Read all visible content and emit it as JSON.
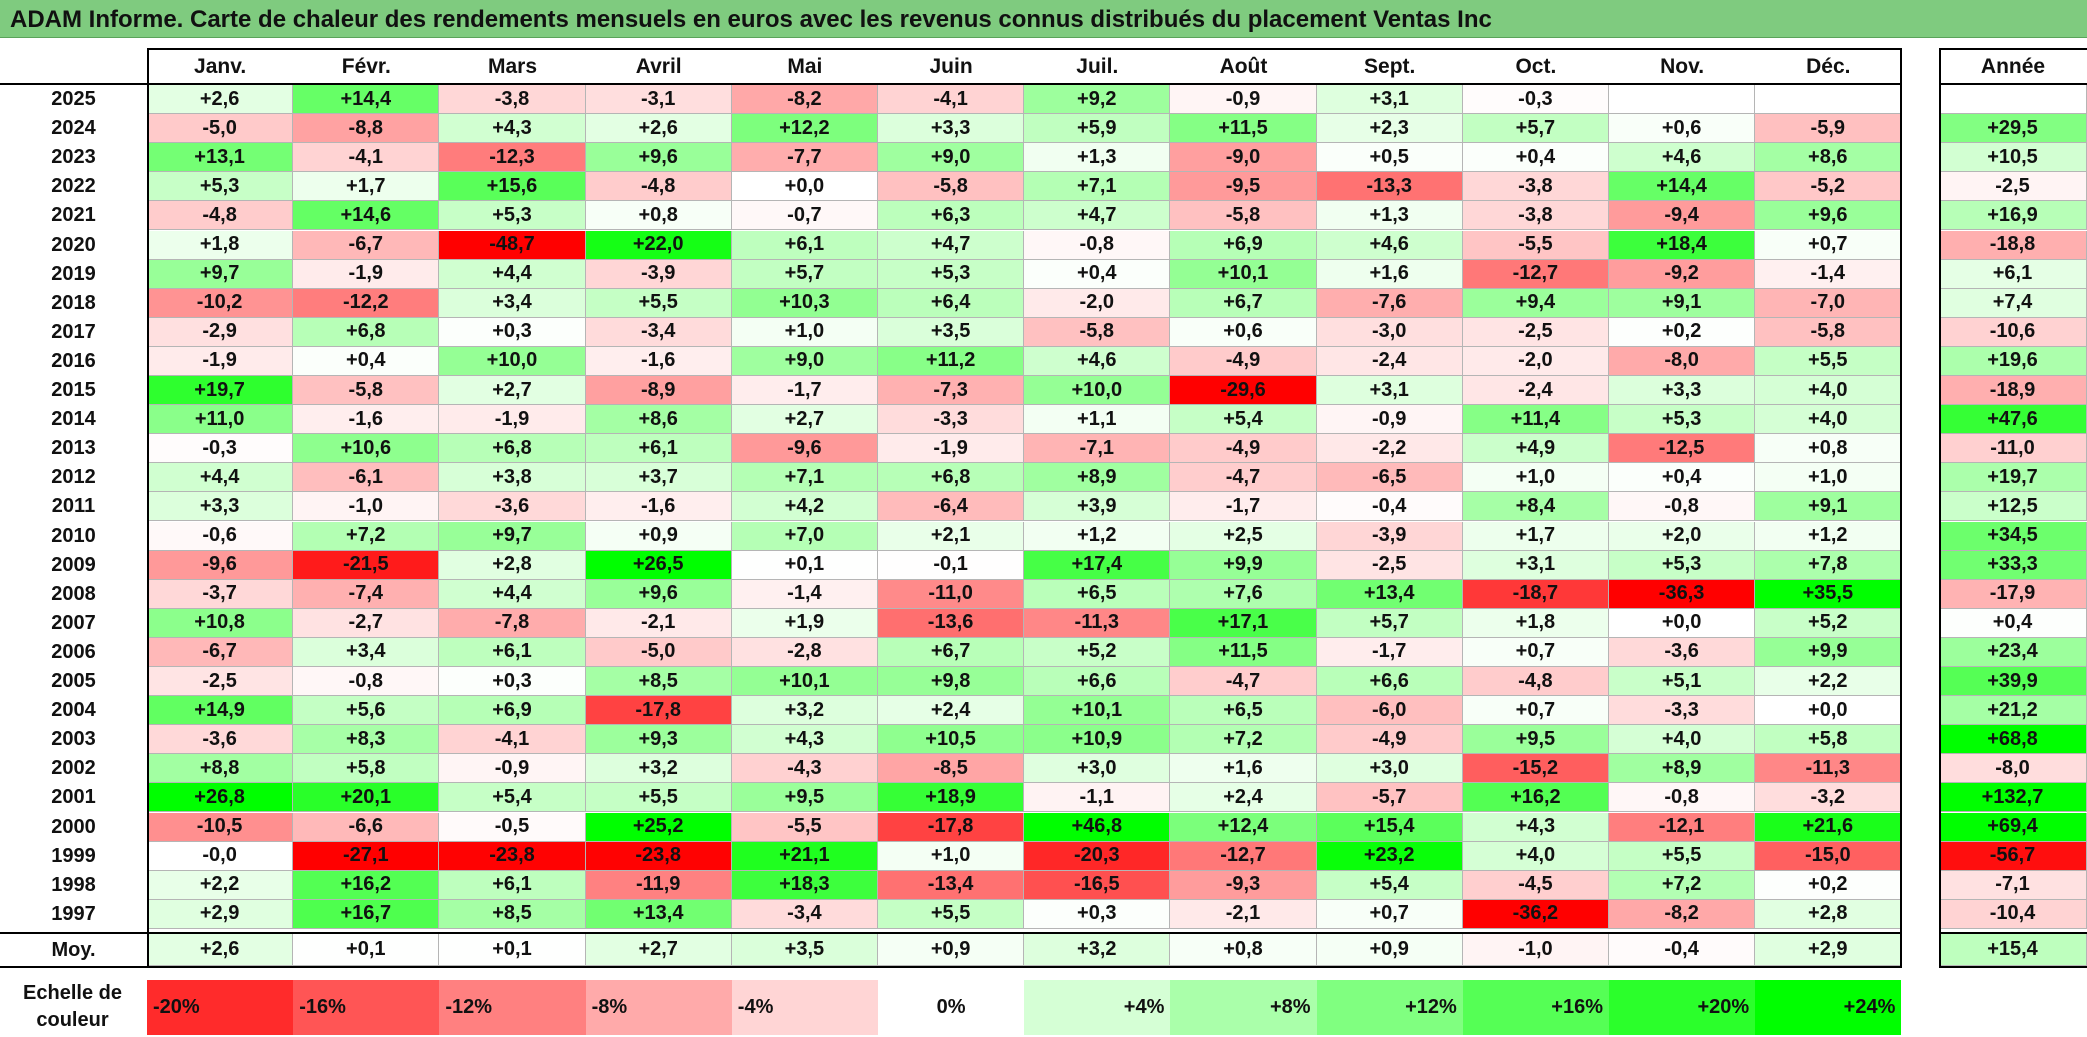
{
  "title": "ADAM Informe. Carte de chaleur des rendements mensuels en euros avec les revenus connus distribués du placement Ventas Inc",
  "chart_data": {
    "type": "heatmap",
    "title": "ADAM Informe. Carte de chaleur des rendements mensuels en euros avec les revenus connus distribués du placement Ventas Inc",
    "months": [
      "Janv.",
      "Févr.",
      "Mars",
      "Avril",
      "Mai",
      "Juin",
      "Juil.",
      "Août",
      "Sept.",
      "Oct.",
      "Nov.",
      "Déc."
    ],
    "annual_label": "Année",
    "rows": [
      {
        "year": "2025",
        "values": [
          "+2,6",
          "+14,4",
          "-3,8",
          "-3,1",
          "-8,2",
          "-4,1",
          "+9,2",
          "-0,9",
          "+3,1",
          "-0,3",
          "",
          ""
        ],
        "annual": ""
      },
      {
        "year": "2024",
        "values": [
          "-5,0",
          "-8,8",
          "+4,3",
          "+2,6",
          "+12,2",
          "+3,3",
          "+5,9",
          "+11,5",
          "+2,3",
          "+5,7",
          "+0,6",
          "-5,9"
        ],
        "annual": "+29,5"
      },
      {
        "year": "2023",
        "values": [
          "+13,1",
          "-4,1",
          "-12,3",
          "+9,6",
          "-7,7",
          "+9,0",
          "+1,3",
          "-9,0",
          "+0,5",
          "+0,4",
          "+4,6",
          "+8,6"
        ],
        "annual": "+10,5"
      },
      {
        "year": "2022",
        "values": [
          "+5,3",
          "+1,7",
          "+15,6",
          "-4,8",
          "+0,0",
          "-5,8",
          "+7,1",
          "-9,5",
          "-13,3",
          "-3,8",
          "+14,4",
          "-5,2"
        ],
        "annual": "-2,5"
      },
      {
        "year": "2021",
        "values": [
          "-4,8",
          "+14,6",
          "+5,3",
          "+0,8",
          "-0,7",
          "+6,3",
          "+4,7",
          "-5,8",
          "+1,3",
          "-3,8",
          "-9,4",
          "+9,6"
        ],
        "annual": "+16,9"
      },
      {
        "year": "2020",
        "values": [
          "+1,8",
          "-6,7",
          "-48,7",
          "+22,0",
          "+6,1",
          "+4,7",
          "-0,8",
          "+6,9",
          "+4,6",
          "-5,5",
          "+18,4",
          "+0,7"
        ],
        "annual": "-18,8"
      },
      {
        "year": "2019",
        "values": [
          "+9,7",
          "-1,9",
          "+4,4",
          "-3,9",
          "+5,7",
          "+5,3",
          "+0,4",
          "+10,1",
          "+1,6",
          "-12,7",
          "-9,2",
          "-1,4"
        ],
        "annual": "+6,1"
      },
      {
        "year": "2018",
        "values": [
          "-10,2",
          "-12,2",
          "+3,4",
          "+5,5",
          "+10,3",
          "+6,4",
          "-2,0",
          "+6,7",
          "-7,6",
          "+9,4",
          "+9,1",
          "-7,0"
        ],
        "annual": "+7,4"
      },
      {
        "year": "2017",
        "values": [
          "-2,9",
          "+6,8",
          "+0,3",
          "-3,4",
          "+1,0",
          "+3,5",
          "-5,8",
          "+0,6",
          "-3,0",
          "-2,5",
          "+0,2",
          "-5,8"
        ],
        "annual": "-10,6"
      },
      {
        "year": "2016",
        "values": [
          "-1,9",
          "+0,4",
          "+10,0",
          "-1,6",
          "+9,0",
          "+11,2",
          "+4,6",
          "-4,9",
          "-2,4",
          "-2,0",
          "-8,0",
          "+5,5"
        ],
        "annual": "+19,6"
      },
      {
        "year": "2015",
        "values": [
          "+19,7",
          "-5,8",
          "+2,7",
          "-8,9",
          "-1,7",
          "-7,3",
          "+10,0",
          "-29,6",
          "+3,1",
          "-2,4",
          "+3,3",
          "+4,0"
        ],
        "annual": "-18,9"
      },
      {
        "year": "2014",
        "values": [
          "+11,0",
          "-1,6",
          "-1,9",
          "+8,6",
          "+2,7",
          "-3,3",
          "+1,1",
          "+5,4",
          "-0,9",
          "+11,4",
          "+5,3",
          "+4,0"
        ],
        "annual": "+47,6"
      },
      {
        "year": "2013",
        "values": [
          "-0,3",
          "+10,6",
          "+6,8",
          "+6,1",
          "-9,6",
          "-1,9",
          "-7,1",
          "-4,9",
          "-2,2",
          "+4,9",
          "-12,5",
          "+0,8"
        ],
        "annual": "-11,0"
      },
      {
        "year": "2012",
        "values": [
          "+4,4",
          "-6,1",
          "+3,8",
          "+3,7",
          "+7,1",
          "+6,8",
          "+8,9",
          "-4,7",
          "-6,5",
          "+1,0",
          "+0,4",
          "+1,0"
        ],
        "annual": "+19,7"
      },
      {
        "year": "2011",
        "values": [
          "+3,3",
          "-1,0",
          "-3,6",
          "-1,6",
          "+4,2",
          "-6,4",
          "+3,9",
          "-1,7",
          "-0,4",
          "+8,4",
          "-0,8",
          "+9,1"
        ],
        "annual": "+12,5"
      },
      {
        "year": "2010",
        "values": [
          "-0,6",
          "+7,2",
          "+9,7",
          "+0,9",
          "+7,0",
          "+2,1",
          "+1,2",
          "+2,5",
          "-3,9",
          "+1,7",
          "+2,0",
          "+1,2"
        ],
        "annual": "+34,5"
      },
      {
        "year": "2009",
        "values": [
          "-9,6",
          "-21,5",
          "+2,8",
          "+26,5",
          "+0,1",
          "-0,1",
          "+17,4",
          "+9,9",
          "-2,5",
          "+3,1",
          "+5,3",
          "+7,8"
        ],
        "annual": "+33,3"
      },
      {
        "year": "2008",
        "values": [
          "-3,7",
          "-7,4",
          "+4,4",
          "+9,6",
          "-1,4",
          "-11,0",
          "+6,5",
          "+7,6",
          "+13,4",
          "-18,7",
          "-36,3",
          "+35,5"
        ],
        "annual": "-17,9"
      },
      {
        "year": "2007",
        "values": [
          "+10,8",
          "-2,7",
          "-7,8",
          "-2,1",
          "+1,9",
          "-13,6",
          "-11,3",
          "+17,1",
          "+5,7",
          "+1,8",
          "+0,0",
          "+5,2"
        ],
        "annual": "+0,4"
      },
      {
        "year": "2006",
        "values": [
          "-6,7",
          "+3,4",
          "+6,1",
          "-5,0",
          "-2,8",
          "+6,7",
          "+5,2",
          "+11,5",
          "-1,7",
          "+0,7",
          "-3,6",
          "+9,9"
        ],
        "annual": "+23,4"
      },
      {
        "year": "2005",
        "values": [
          "-2,5",
          "-0,8",
          "+0,3",
          "+8,5",
          "+10,1",
          "+9,8",
          "+6,6",
          "-4,7",
          "+6,6",
          "-4,8",
          "+5,1",
          "+2,2"
        ],
        "annual": "+39,9"
      },
      {
        "year": "2004",
        "values": [
          "+14,9",
          "+5,6",
          "+6,9",
          "-17,8",
          "+3,2",
          "+2,4",
          "+10,1",
          "+6,5",
          "-6,0",
          "+0,7",
          "-3,3",
          "+0,0"
        ],
        "annual": "+21,2"
      },
      {
        "year": "2003",
        "values": [
          "-3,6",
          "+8,3",
          "-4,1",
          "+9,3",
          "+4,3",
          "+10,5",
          "+10,9",
          "+7,2",
          "-4,9",
          "+9,5",
          "+4,0",
          "+5,8"
        ],
        "annual": "+68,8"
      },
      {
        "year": "2002",
        "values": [
          "+8,8",
          "+5,8",
          "-0,9",
          "+3,2",
          "-4,3",
          "-8,5",
          "+3,0",
          "+1,6",
          "+3,0",
          "-15,2",
          "+8,9",
          "-11,3"
        ],
        "annual": "-8,0"
      },
      {
        "year": "2001",
        "values": [
          "+26,8",
          "+20,1",
          "+5,4",
          "+5,5",
          "+9,5",
          "+18,9",
          "-1,1",
          "+2,4",
          "-5,7",
          "+16,2",
          "-0,8",
          "-3,2"
        ],
        "annual": "+132,7"
      },
      {
        "year": "2000",
        "values": [
          "-10,5",
          "-6,6",
          "-0,5",
          "+25,2",
          "-5,5",
          "-17,8",
          "+46,8",
          "+12,4",
          "+15,4",
          "+4,3",
          "-12,1",
          "+21,6"
        ],
        "annual": "+69,4"
      },
      {
        "year": "1999",
        "values": [
          "-0,0",
          "-27,1",
          "-23,8",
          "-23,8",
          "+21,1",
          "+1,0",
          "-20,3",
          "-12,7",
          "+23,2",
          "+4,0",
          "+5,5",
          "-15,0"
        ],
        "annual": "-56,7"
      },
      {
        "year": "1998",
        "values": [
          "+2,2",
          "+16,2",
          "+6,1",
          "-11,9",
          "+18,3",
          "-13,4",
          "-16,5",
          "-9,3",
          "+5,4",
          "-4,5",
          "+7,2",
          "+0,2"
        ],
        "annual": "-7,1"
      },
      {
        "year": "1997",
        "values": [
          "+2,9",
          "+16,7",
          "+8,5",
          "+13,4",
          "-3,4",
          "+5,5",
          "+0,3",
          "-2,1",
          "+0,7",
          "-36,2",
          "-8,2",
          "+2,8"
        ],
        "annual": "-10,4"
      }
    ],
    "average": {
      "label": "Moy.",
      "values": [
        "+2,6",
        "+0,1",
        "+0,1",
        "+2,7",
        "+3,5",
        "+0,9",
        "+3,2",
        "+0,8",
        "+0,9",
        "-1,0",
        "-0,4",
        "+2,9"
      ],
      "annual": "+15,4"
    },
    "color_scale": {
      "label": "Echelle de couleur",
      "steps": [
        {
          "text": "-20%",
          "value": -20
        },
        {
          "text": "-16%",
          "value": -16
        },
        {
          "text": "-12%",
          "value": -12
        },
        {
          "text": "-8%",
          "value": -8
        },
        {
          "text": "-4%",
          "value": -4
        },
        {
          "text": "0%",
          "value": 0
        },
        {
          "text": "+4%",
          "value": 4
        },
        {
          "text": "+8%",
          "value": 8
        },
        {
          "text": "+12%",
          "value": 12
        },
        {
          "text": "+16%",
          "value": 16
        },
        {
          "text": "+20%",
          "value": 20
        },
        {
          "text": "+24%",
          "value": 24
        }
      ],
      "colors": {
        "negative_max": "#ff0000",
        "zero": "#ffffff",
        "positive_max": "#00ff00"
      }
    }
  }
}
